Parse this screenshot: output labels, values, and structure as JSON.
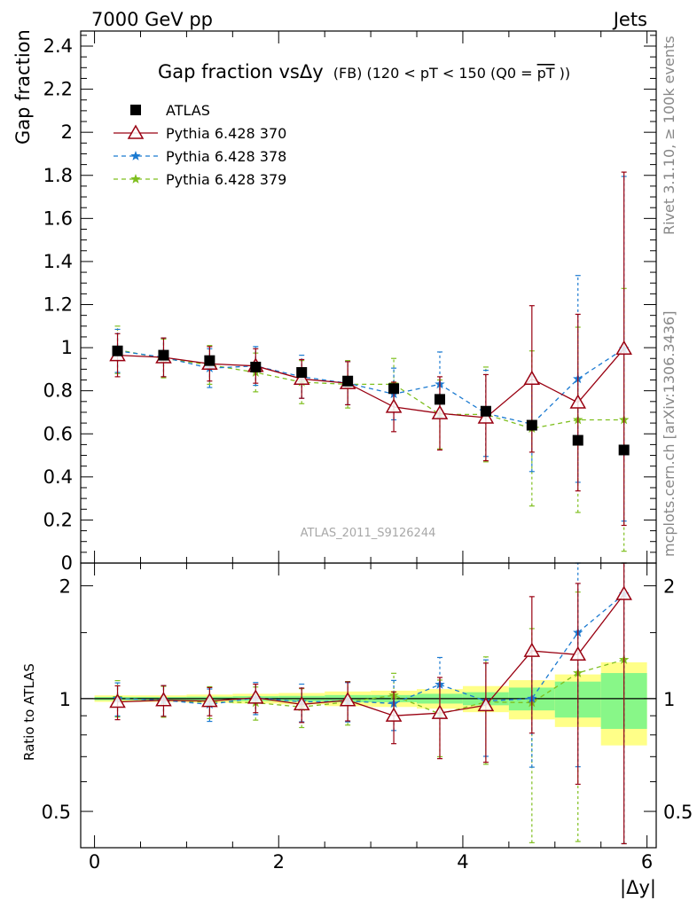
{
  "header": {
    "left": "7000 GeV pp",
    "right": "Jets"
  },
  "side_labels": {
    "rivet": "Rivet 3.1.10, ≥ 100k events",
    "mcplots": "mcplots.cern.ch [arXiv:1306.3436]"
  },
  "title": {
    "main": "Gap fraction vsΔy",
    "detail": "(FB) (120 < pT < 150 (Q0 =",
    "overline": "pT",
    "close": "))"
  },
  "watermark": "ATLAS_2011_S9126244",
  "ratio_ylabel": "Ratio to ATLAS",
  "colors": {
    "atlas": "#000000",
    "pythia370": "#990011",
    "pythia378": "#1b7ad1",
    "pythia379": "#7fbf1f",
    "band_inner": "#88f788",
    "band_outer": "#ffff88"
  },
  "chart_data": {
    "type": "scatter",
    "xlabel": "|Δy|",
    "ylabel": "Gap fraction",
    "xlim": [
      -0.15,
      6.1
    ],
    "ylim": [
      0,
      2.47
    ],
    "ratio_ylim_log": [
      0.4,
      2.3
    ],
    "x_ticks": [
      "0",
      "2",
      "4",
      "6"
    ],
    "y_ticks": [
      "0",
      "0.2",
      "0.4",
      "0.6",
      "0.8",
      "1",
      "1.2",
      "1.4",
      "1.6",
      "1.8",
      "2",
      "2.2",
      "2.4"
    ],
    "ratio_ticks": [
      "0.5",
      "1",
      "2"
    ],
    "x": [
      0.25,
      0.75,
      1.25,
      1.75,
      2.25,
      2.75,
      3.25,
      3.75,
      4.25,
      4.75,
      5.25,
      5.75
    ],
    "legend_placement": "top-left",
    "series": [
      {
        "name": "ATLAS",
        "marker": "square",
        "values": [
          0.985,
          0.965,
          0.94,
          0.91,
          0.885,
          0.845,
          0.81,
          0.76,
          0.705,
          0.64,
          0.57,
          0.525
        ],
        "ratio_band_inner": [
          0.01,
          0.01,
          0.012,
          0.015,
          0.017,
          0.022,
          0.022,
          0.03,
          0.04,
          0.07,
          0.11,
          0.17
        ],
        "ratio_band_outer": [
          0.02,
          0.02,
          0.025,
          0.03,
          0.035,
          0.045,
          0.05,
          0.06,
          0.08,
          0.12,
          0.16,
          0.25
        ]
      },
      {
        "name": "Pythia 6.428 370",
        "marker": "open-triangle",
        "line": "solid",
        "values": [
          0.965,
          0.955,
          0.925,
          0.915,
          0.855,
          0.835,
          0.725,
          0.695,
          0.675,
          0.855,
          0.745,
          0.995
        ],
        "errors": [
          0.1,
          0.09,
          0.08,
          0.08,
          0.09,
          0.1,
          0.115,
          0.17,
          0.2,
          0.34,
          0.41,
          0.82
        ],
        "ratio": [
          0.98,
          0.99,
          0.985,
          1.005,
          0.965,
          0.99,
          0.9,
          0.915,
          0.96,
          1.34,
          1.31,
          1.9
        ]
      },
      {
        "name": "Pythia 6.428 378",
        "marker": "star",
        "line": "dashed",
        "values": [
          0.985,
          0.955,
          0.905,
          0.915,
          0.865,
          0.835,
          0.785,
          0.83,
          0.695,
          0.645,
          0.855,
          0.995
        ],
        "errors": [
          0.1,
          0.09,
          0.09,
          0.09,
          0.1,
          0.1,
          0.12,
          0.15,
          0.2,
          0.22,
          0.48,
          0.8
        ],
        "ratio": [
          1.0,
          0.99,
          0.965,
          1.005,
          0.98,
          0.985,
          0.97,
          1.09,
          0.985,
          1.0,
          1.5,
          1.9
        ]
      },
      {
        "name": "Pythia 6.428 379",
        "marker": "star",
        "line": "dashed",
        "values": [
          0.99,
          0.95,
          0.92,
          0.885,
          0.84,
          0.83,
          0.83,
          0.69,
          0.69,
          0.625,
          0.665,
          0.665
        ],
        "errors": [
          0.11,
          0.09,
          0.09,
          0.09,
          0.1,
          0.11,
          0.12,
          0.16,
          0.22,
          0.36,
          0.43,
          0.61
        ],
        "ratio": [
          1.005,
          0.985,
          0.98,
          0.975,
          0.95,
          0.98,
          1.02,
          0.91,
          0.98,
          0.975,
          1.17,
          1.27
        ]
      }
    ]
  }
}
